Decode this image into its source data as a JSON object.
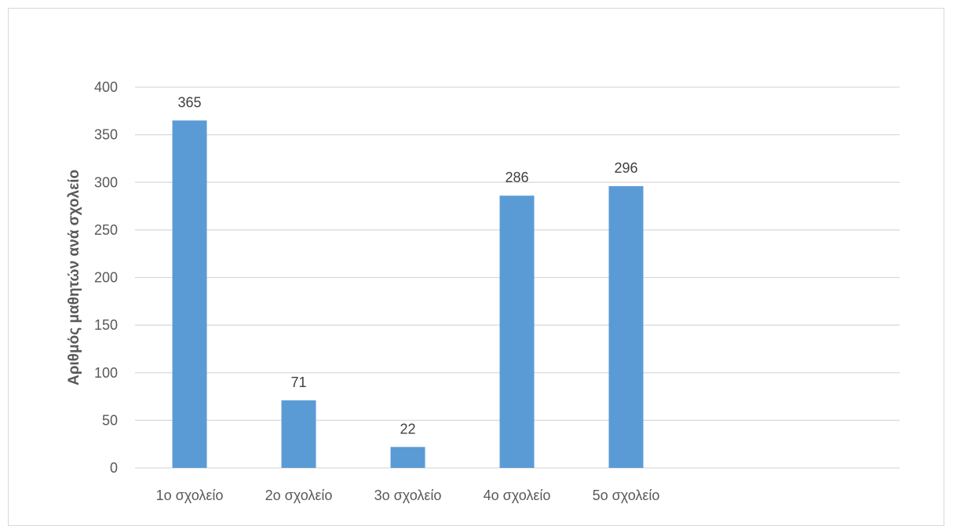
{
  "chart_data": {
    "type": "bar",
    "title": "",
    "xlabel": "",
    "ylabel": "Αριθμός μαθητών ανά σχολείο",
    "categories": [
      "1ο σχολείο",
      "2ο σχολείο",
      "3ο σχολείο",
      "4ο σχολείο",
      "5ο σχολείο"
    ],
    "values": [
      365,
      71,
      22,
      286,
      296
    ],
    "data_labels": [
      "365",
      "71",
      "22",
      "286",
      "296"
    ],
    "ylim": [
      0,
      400
    ],
    "yticks": [
      0,
      50,
      100,
      150,
      200,
      250,
      300,
      350,
      400
    ],
    "ytick_labels": [
      "0",
      "50",
      "100",
      "150",
      "200",
      "250",
      "300",
      "350",
      "400"
    ],
    "grid": true,
    "legend": "none",
    "bar_color": "#5b9bd5",
    "grid_color": "#d9d9d9"
  }
}
